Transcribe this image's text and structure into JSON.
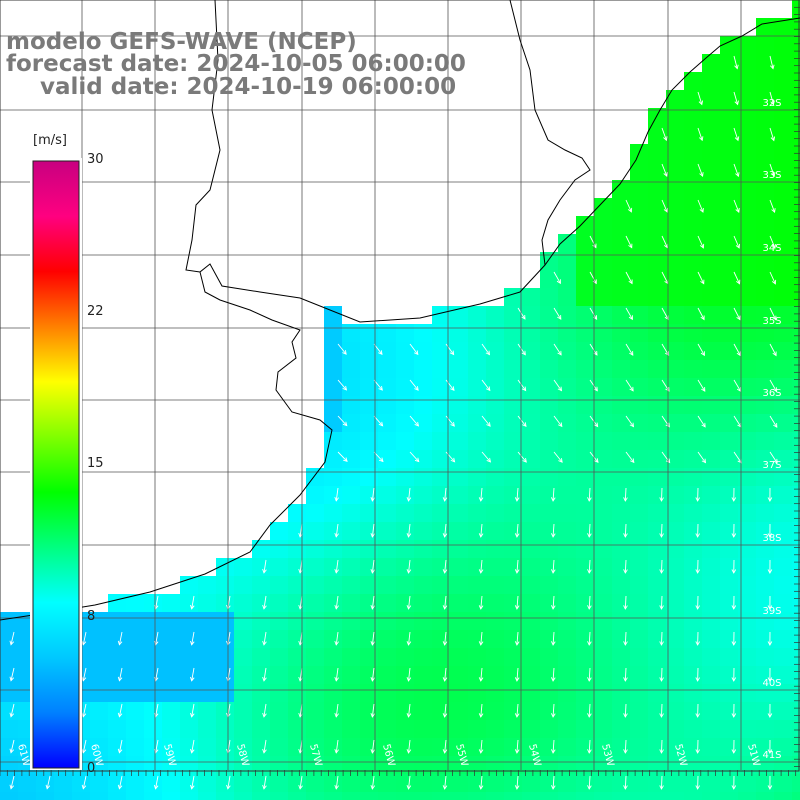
{
  "title": {
    "line1": "modelo GEFS-WAVE (NCEP)",
    "line2": "forecast date: 2024-10-05 06:00:00",
    "line3": "valid date: 2024-10-19 06:00:00"
  },
  "colorbar": {
    "unit": "[m/s]",
    "ticks": [
      "30",
      "22",
      "15",
      "8",
      "0"
    ],
    "tick_values": [
      30,
      22,
      15,
      8,
      0
    ],
    "min": 0,
    "max": 30,
    "colors": [
      "#0000ff",
      "#0080ff",
      "#00c8ff",
      "#00ffff",
      "#00ff80",
      "#00ff00",
      "#80ff00",
      "#ffff00",
      "#ff8000",
      "#ff0000",
      "#ff0080",
      "#c80080"
    ]
  },
  "map": {
    "parameter": "wind speed and direction",
    "longitude_labels": [
      "61W",
      "60W",
      "59W",
      "58W",
      "57W",
      "56W",
      "55W",
      "54W",
      "53W",
      "52W",
      "51W"
    ],
    "latitude_labels": [
      "32S",
      "33S",
      "34S",
      "35S",
      "36S",
      "37S",
      "38S",
      "39S",
      "40S",
      "41S"
    ],
    "land_color": "#ffffff",
    "coastline_color": "#000000",
    "grid_color": "#555555",
    "arrow_color": "#ffffff"
  }
}
